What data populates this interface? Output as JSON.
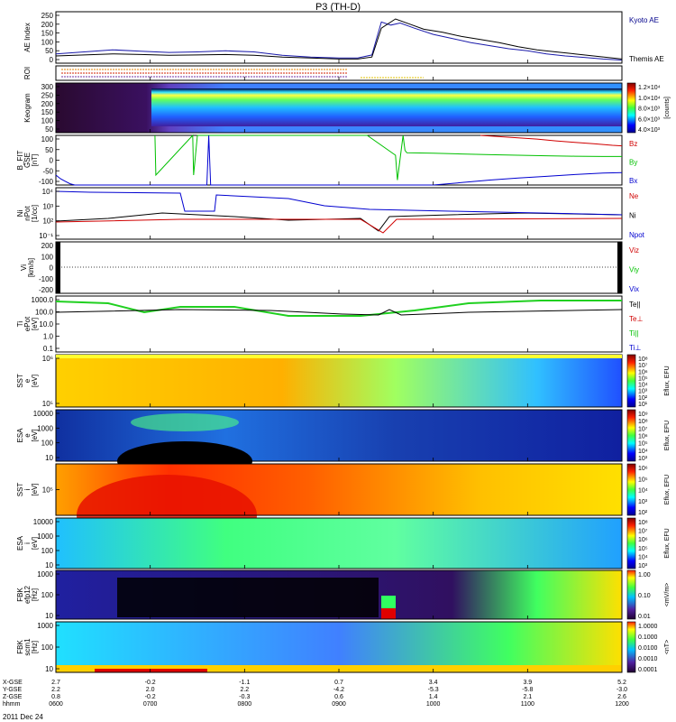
{
  "title": "P3 (TH-D)",
  "date": "2011 Dec 24",
  "chart_data": {
    "type": "line",
    "x_ticks": [
      "0600",
      "0700",
      "0800",
      "0900",
      "1000",
      "1100",
      "1200"
    ],
    "xlim": [
      "06:00",
      "12:00"
    ],
    "ephemeris": {
      "labels": [
        "X-GSE",
        "Y-GSE",
        "Z-GSE",
        "hhmm"
      ],
      "columns": [
        [
          "2.7",
          "2.2",
          "0.8",
          "0600"
        ],
        [
          "-0.2",
          "2.0",
          "-0.2",
          "0700"
        ],
        [
          "-1.1",
          "2.2",
          "-0.3",
          "0800"
        ],
        [
          "0.7",
          "-4.2",
          "0.6",
          "0900"
        ],
        [
          "3.4",
          "-5.3",
          "1.4",
          "1000"
        ],
        [
          "3.9",
          "-5.8",
          "2.1",
          "1100"
        ],
        [
          "5.2",
          "-3.0",
          "2.6",
          "1200"
        ]
      ]
    },
    "panels": [
      {
        "id": "ae",
        "ylabel": [
          "AE Index"
        ],
        "yticks": [
          "250",
          "200",
          "150",
          "100",
          "50",
          "0"
        ],
        "ylim": [
          0,
          250
        ],
        "legend": [
          {
            "label": "Kyoto AE",
            "color": "#00008b"
          },
          {
            "label": "Themis AE",
            "color": "#000000"
          }
        ],
        "series": [
          {
            "name": "Kyoto AE",
            "color": "#1a1aaa",
            "x": [
              6.0,
              6.3,
              6.6,
              6.9,
              7.2,
              7.5,
              7.8,
              8.1,
              8.4,
              8.7,
              9.0,
              9.2,
              9.35,
              9.45,
              9.55,
              9.65,
              9.8,
              10.0,
              10.2,
              10.4,
              10.6,
              10.8,
              11.0,
              11.2,
              11.4,
              11.6,
              11.8,
              12.0
            ],
            "y": [
              45,
              55,
              65,
              58,
              52,
              55,
              60,
              55,
              38,
              30,
              25,
              25,
              40,
              200,
              185,
              195,
              170,
              140,
              120,
              100,
              85,
              70,
              60,
              45,
              35,
              28,
              20,
              15
            ]
          },
          {
            "name": "Themis AE",
            "color": "#000000",
            "x": [
              6.0,
              6.3,
              6.6,
              6.9,
              7.2,
              7.5,
              7.8,
              8.1,
              8.4,
              8.7,
              9.0,
              9.2,
              9.35,
              9.45,
              9.6,
              9.75,
              9.9,
              10.1,
              10.3,
              10.5,
              10.7,
              10.9,
              11.1,
              11.3,
              11.5,
              11.7,
              11.9,
              12.0
            ],
            "y": [
              35,
              40,
              45,
              42,
              38,
              40,
              42,
              38,
              30,
              25,
              20,
              20,
              30,
              170,
              215,
              190,
              165,
              150,
              130,
              115,
              100,
              80,
              65,
              55,
              45,
              35,
              25,
              20
            ]
          }
        ]
      },
      {
        "id": "roi",
        "ylabel": [
          "ROI"
        ],
        "yticks": []
      },
      {
        "id": "keogram",
        "ylabel": [
          "Keogram"
        ],
        "yticks": [
          "300",
          "250",
          "200",
          "150",
          "100",
          "50"
        ],
        "ylim": [
          0,
          300
        ],
        "colorbar": {
          "label": "[counts]",
          "ticks": [
            "1.2×10⁴",
            "1.0×10⁴",
            "8.0×10³",
            "6.0×10³",
            "4.0×10³"
          ]
        }
      },
      {
        "id": "bfit",
        "ylabel": [
          "B_FIT",
          "GSE",
          "[nT]"
        ],
        "yticks": [
          "100",
          "50",
          "0",
          "-50",
          "-100"
        ],
        "ylim": [
          -100,
          100
        ],
        "legend": [
          {
            "label": "Bz",
            "color": "#d00000"
          },
          {
            "label": "By",
            "color": "#00c000"
          },
          {
            "label": "Bx",
            "color": "#0000d0"
          }
        ],
        "series": [
          {
            "name": "Bz",
            "color": "#d00000",
            "x": [
              10.5,
              10.7,
              10.9,
              11.1,
              11.3,
              11.5,
              11.7,
              11.9,
              12.0
            ],
            "y": [
              100,
              95,
              90,
              85,
              78,
              72,
              66,
              60,
              58
            ]
          },
          {
            "name": "By",
            "color": "#00c000",
            "x": [
              7.05,
              7.06,
              7.45,
              7.46,
              7.5,
              9.3,
              9.6,
              9.62,
              9.68,
              9.7,
              9.72,
              10.0,
              10.3,
              10.6,
              10.9,
              11.2,
              11.5,
              11.8,
              12.0
            ],
            "y": [
              100,
              -60,
              100,
              -60,
              100,
              100,
              20,
              -80,
              100,
              40,
              30,
              28,
              25,
              22,
              20,
              18,
              16,
              15,
              15
            ]
          },
          {
            "name": "Bx",
            "color": "#0000d0",
            "x": [
              6.0,
              6.05,
              6.1,
              6.15,
              6.2,
              7.6,
              7.62,
              7.64,
              10.0,
              10.3,
              10.6,
              10.9,
              11.2,
              11.5,
              11.8,
              12.0
            ],
            "y": [
              -60,
              -75,
              -85,
              -95,
              -100,
              -100,
              100,
              -100,
              -100,
              -90,
              -80,
              -72,
              -65,
              -58,
              -52,
              -50
            ]
          }
        ]
      },
      {
        "id": "ni",
        "ylabel": [
          "Ni",
          "nPot",
          "[1/cc]"
        ],
        "yticks": [
          "10⁴",
          "10³",
          "10²",
          "10⁻¹"
        ],
        "legend": [
          {
            "label": "Ne",
            "color": "#d00000"
          },
          {
            "label": "Ni",
            "color": "#000000"
          },
          {
            "label": "Npot",
            "color": "#0000d0"
          }
        ]
      },
      {
        "id": "vi",
        "ylabel": [
          "Vi",
          "[km/s]"
        ],
        "yticks": [
          "200",
          "100",
          "0",
          "-100",
          "-200"
        ],
        "ylim": [
          -250,
          250
        ],
        "legend": [
          {
            "label": "Viz",
            "color": "#d00000"
          },
          {
            "label": "Viy",
            "color": "#00c000"
          },
          {
            "label": "Vix",
            "color": "#0000d0"
          }
        ]
      },
      {
        "id": "ti",
        "ylabel": [
          "Ti",
          "ePot",
          "[eV]"
        ],
        "yticks": [
          "1000.0",
          "100.0",
          "10.0",
          "1.0",
          "0.1"
        ],
        "legend": [
          {
            "label": "Te||",
            "color": "#000000"
          },
          {
            "label": "Te⊥",
            "color": "#d00000"
          },
          {
            "label": "Ti||",
            "color": "#00c000"
          },
          {
            "label": "Ti⊥",
            "color": "#0000d0"
          }
        ]
      },
      {
        "id": "sst-e",
        "ylabel": [
          "SST",
          "e",
          "[eV]"
        ],
        "yticks": [
          "10⁶",
          "10⁵"
        ],
        "colorbar": {
          "label": "Eflux, EFU",
          "ticks": [
            "10⁸",
            "10⁷",
            "10⁶",
            "10⁵",
            "10⁴",
            "10³",
            "10²",
            "10¹"
          ]
        }
      },
      {
        "id": "esa-e",
        "ylabel": [
          "ESA",
          "e",
          "[eV]"
        ],
        "yticks": [
          "10000",
          "1000",
          "100",
          "10"
        ],
        "colorbar": {
          "label": "Eflux, EFU",
          "ticks": [
            "10⁹",
            "10⁸",
            "10⁷",
            "10⁶",
            "10⁵",
            "10⁴",
            "10³"
          ]
        }
      },
      {
        "id": "sst-i",
        "ylabel": [
          "SST",
          "i",
          "[eV]"
        ],
        "yticks": [
          "10⁵"
        ],
        "colorbar": {
          "label": "Eflux, EFU",
          "ticks": [
            "10⁶",
            "10⁵",
            "10⁴",
            "10³",
            "10²"
          ]
        }
      },
      {
        "id": "esa-i",
        "ylabel": [
          "ESA",
          "i",
          "[eV]"
        ],
        "yticks": [
          "10000",
          "1000",
          "100",
          "10"
        ],
        "colorbar": {
          "label": "Eflux, EFU",
          "ticks": [
            "10⁸",
            "10⁷",
            "10⁶",
            "10⁵",
            "10⁴",
            "10³"
          ]
        }
      },
      {
        "id": "fbk-e",
        "ylabel": [
          "FBK",
          "efp12",
          "[Hz]"
        ],
        "yticks": [
          "1000",
          "100",
          "10"
        ],
        "colorbar": {
          "label": "<mV/m>",
          "ticks": [
            "1.00",
            "0.10",
            "0.01"
          ]
        }
      },
      {
        "id": "fbk-b",
        "ylabel": [
          "FBK",
          "scm1",
          "[Hz]"
        ],
        "yticks": [
          "1000",
          "100",
          "10"
        ],
        "colorbar": {
          "label": "<nT>",
          "ticks": [
            "1.0000",
            "0.1000",
            "0.0100",
            "0.0010",
            "0.0001"
          ]
        }
      }
    ]
  }
}
